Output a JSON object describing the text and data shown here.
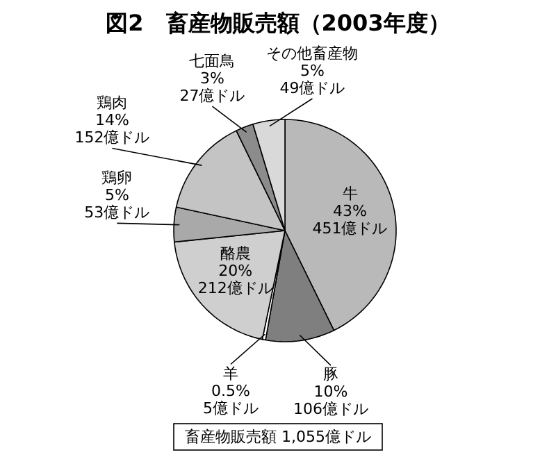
{
  "chart_data": {
    "type": "pie",
    "title": "図2　畜産物販売額（2003年度）",
    "categories": [
      "牛",
      "豚",
      "羊",
      "酪農",
      "鶏卵",
      "鶏肉",
      "七面鳥",
      "その他畜産物"
    ],
    "values": [
      451,
      106,
      5,
      212,
      53,
      152,
      27,
      49
    ],
    "value_labels": [
      "43%\n451億ドル",
      "10%\n106億ドル",
      "0.5%\n5億ドル",
      "20%\n212億ドル",
      "5%\n53億ドル",
      "14%\n152億ドル",
      "3%\n27億ドル",
      "5%\n49億ドル"
    ],
    "colors": [
      "#b9b9b9",
      "#7f7f7f",
      "#ffffff",
      "#cfcfcf",
      "#a9a9a9",
      "#c4c4c4",
      "#8c8c8c",
      "#d9d9d9"
    ],
    "annotations": [
      "畜産物販売額 1,055億ドル"
    ]
  }
}
